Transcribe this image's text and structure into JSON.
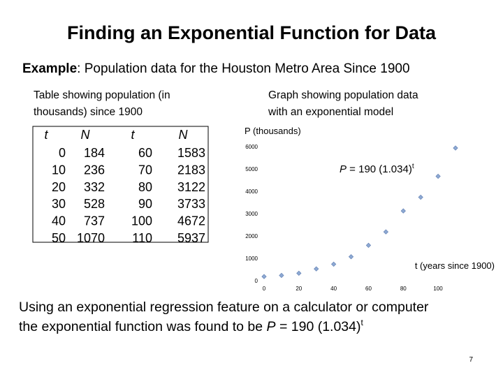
{
  "title": "Finding an Exponential Function for Data",
  "example": {
    "label": "Example",
    "text": ": Population data for the Houston Metro Area Since 1900"
  },
  "table": {
    "caption_lines": [
      "Table showing population (in",
      "thousands) since 1900"
    ],
    "headers": [
      "t",
      "N",
      "t",
      "N"
    ]
  },
  "graph_caption_lines": [
    "Graph showing population data",
    "with an exponential model"
  ],
  "chart_data": {
    "type": "scatter",
    "x": [
      0,
      10,
      20,
      30,
      40,
      50,
      60,
      70,
      80,
      90,
      100,
      110
    ],
    "series": [
      {
        "name": "N",
        "color": "#8ea9d3",
        "values": [
          184,
          236,
          332,
          528,
          737,
          1070,
          1583,
          2183,
          3122,
          3733,
          4672,
          5937
        ]
      }
    ],
    "xlim": [
      0,
      110
    ],
    "ylim": [
      0,
      6000
    ],
    "xticks": [
      0,
      20,
      40,
      60,
      80,
      100
    ],
    "yticks": [
      0,
      1000,
      2000,
      3000,
      4000,
      5000,
      6000
    ],
    "y_label": "P (thousands)",
    "x_label": "t (years since 1900)",
    "annotation": {
      "var": "P",
      "text": " = 190 (1.034)",
      "exponent": "t"
    }
  },
  "footer": {
    "line1": "Using an exponential regression feature on a calculator or computer",
    "line2": "the exponential function was found to be ",
    "var": "P",
    "formula": " = 190 (1.034)",
    "exponent": "t"
  },
  "page_number": "7"
}
